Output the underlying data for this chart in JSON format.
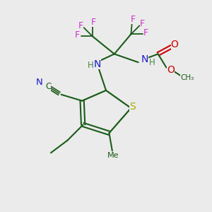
{
  "background_color": "#ebebeb",
  "atom_colors": {
    "C": "#1a5c1a",
    "N": "#1a1acc",
    "O": "#cc0000",
    "S": "#aaaa00",
    "F": "#cc33cc",
    "H": "#448844"
  },
  "fig_size": [
    3.0,
    3.0
  ],
  "dpi": 100
}
